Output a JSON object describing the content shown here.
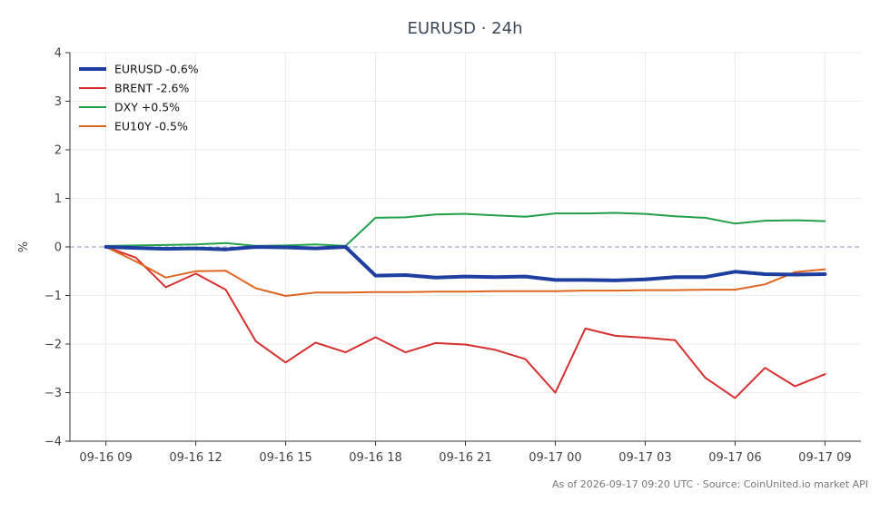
{
  "chart_data": {
    "type": "line",
    "title": "EURUSD · 24h",
    "ylabel": "%",
    "xlabel": "",
    "ylim": [
      -4,
      4
    ],
    "yticks": [
      -4,
      -3,
      -2,
      -1,
      0,
      1,
      2,
      3,
      4
    ],
    "ytick_labels": [
      "−4",
      "−3",
      "−2",
      "−1",
      "0",
      "1",
      "2",
      "3",
      "4"
    ],
    "x_hours": [
      0,
      1,
      2,
      3,
      4,
      5,
      6,
      7,
      8,
      9,
      10,
      11,
      12,
      13,
      14,
      15,
      16,
      17,
      18,
      19,
      20,
      21,
      22,
      23,
      24
    ],
    "xticks": [
      0,
      3,
      6,
      9,
      12,
      15,
      18,
      21,
      24
    ],
    "xtick_labels": [
      "09-16 09",
      "09-16 12",
      "09-16 15",
      "09-16 18",
      "09-16 21",
      "09-17 00",
      "09-17 03",
      "09-17 06",
      "09-17 09"
    ],
    "xlim": [
      -1.2,
      25.2
    ],
    "grid": true,
    "zero_line": true,
    "legend_position": "top-left",
    "series": [
      {
        "name": "EURUSD -0.6%",
        "color": "#1f3fa0",
        "width": 4,
        "values": [
          0.0,
          -0.02,
          -0.04,
          -0.03,
          -0.05,
          0.0,
          -0.01,
          -0.03,
          0.0,
          -0.59,
          -0.58,
          -0.63,
          -0.61,
          -0.62,
          -0.61,
          -0.68,
          -0.68,
          -0.69,
          -0.67,
          -0.62,
          -0.62,
          -0.51,
          -0.56,
          -0.57,
          -0.56
        ]
      },
      {
        "name": "BRENT -2.6%",
        "color": "#d62f2f",
        "width": 2,
        "values": [
          0.0,
          -0.22,
          -0.83,
          -0.55,
          -0.88,
          -1.94,
          -2.38,
          -1.97,
          -2.17,
          -1.86,
          -2.17,
          -1.98,
          -2.01,
          -2.12,
          -2.31,
          -3.0,
          -1.68,
          -1.83,
          -1.87,
          -1.92,
          -2.69,
          -3.11,
          -2.49,
          -2.87,
          -2.62
        ]
      },
      {
        "name": "DXY +0.5%",
        "color": "#22a04a",
        "width": 2,
        "values": [
          0.02,
          0.03,
          0.04,
          0.05,
          0.08,
          0.02,
          0.03,
          0.05,
          0.02,
          0.6,
          0.61,
          0.67,
          0.68,
          0.65,
          0.62,
          0.69,
          0.69,
          0.7,
          0.68,
          0.63,
          0.6,
          0.48,
          0.54,
          0.55,
          0.53
        ]
      },
      {
        "name": "EU10Y -0.5%",
        "color": "#e0661f",
        "width": 2,
        "values": [
          0.0,
          -0.3,
          -0.63,
          -0.5,
          -0.49,
          -0.85,
          -1.01,
          -0.94,
          -0.94,
          -0.93,
          -0.93,
          -0.92,
          -0.92,
          -0.91,
          -0.91,
          -0.91,
          -0.9,
          -0.9,
          -0.89,
          -0.89,
          -0.88,
          -0.88,
          -0.77,
          -0.52,
          -0.46
        ]
      }
    ]
  },
  "footer": {
    "text": "As of 2026-09-17 09:20 UTC · Source: CoinUnited.io market API"
  }
}
